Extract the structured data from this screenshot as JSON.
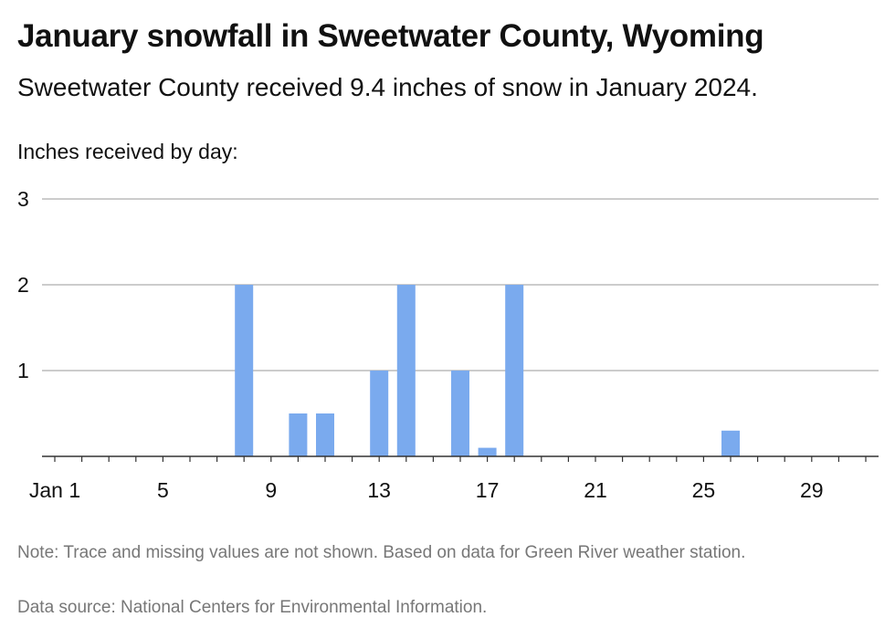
{
  "title": "January snowfall in Sweetwater County, Wyoming",
  "subtitle": "Sweetwater County received 9.4 inches of snow in January 2024.",
  "footer": {
    "note": "Note: Trace and missing values are not shown. Based on data for Green River weather station.",
    "source": "Data source: National Centers for Environmental Information."
  },
  "colors": {
    "bar": "#7aaaee",
    "grid": "#bbbbbb",
    "axis": "#333333"
  },
  "chart_data": {
    "type": "bar",
    "ylabel": "Inches received by day:",
    "ylim": [
      0,
      3
    ],
    "y_ticks": [
      1,
      2,
      3
    ],
    "x_ticks": [
      {
        "day": 1,
        "label": "Jan 1"
      },
      {
        "day": 5,
        "label": "5"
      },
      {
        "day": 9,
        "label": "9"
      },
      {
        "day": 13,
        "label": "13"
      },
      {
        "day": 17,
        "label": "17"
      },
      {
        "day": 21,
        "label": "21"
      },
      {
        "day": 25,
        "label": "25"
      },
      {
        "day": 29,
        "label": "29"
      }
    ],
    "x": [
      1,
      2,
      3,
      4,
      5,
      6,
      7,
      8,
      9,
      10,
      11,
      12,
      13,
      14,
      15,
      16,
      17,
      18,
      19,
      20,
      21,
      22,
      23,
      24,
      25,
      26,
      27,
      28,
      29,
      30,
      31
    ],
    "values": [
      0,
      0,
      0,
      0,
      0,
      0,
      0,
      2,
      0,
      0.5,
      0.5,
      0,
      1,
      2,
      0,
      1,
      0.1,
      2,
      0,
      0,
      0,
      0,
      0,
      0,
      0,
      0.3,
      0,
      0,
      0,
      0,
      0
    ],
    "grid": true,
    "legend": "none"
  }
}
